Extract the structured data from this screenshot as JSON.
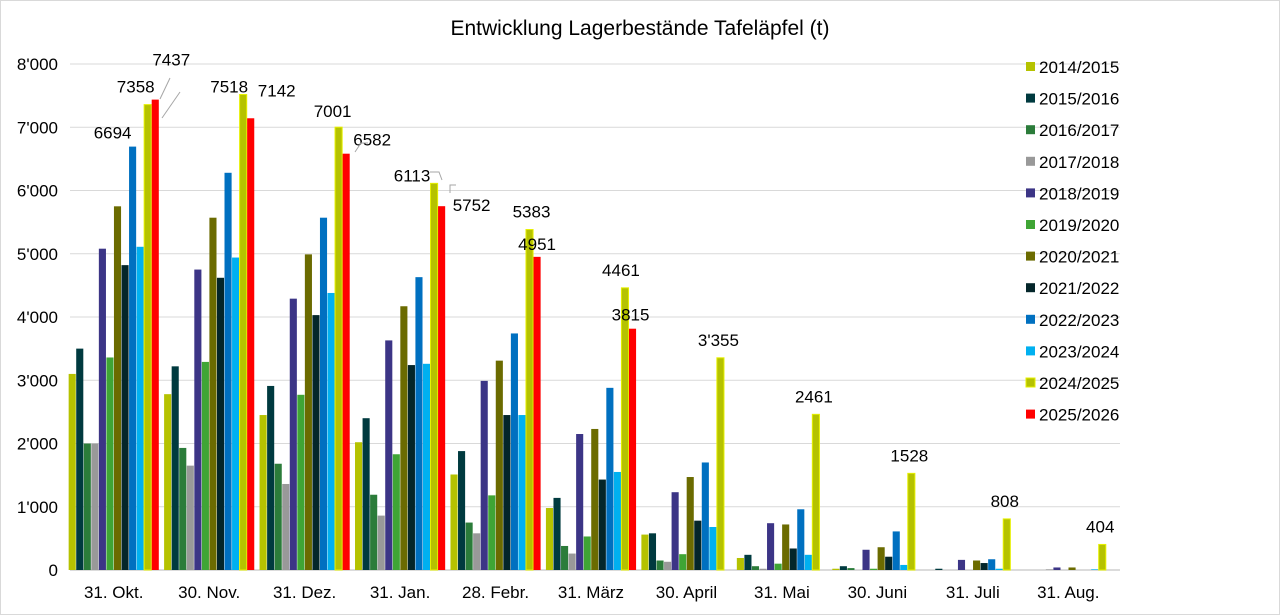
{
  "chart_data": {
    "type": "bar",
    "title": "Entwicklung Lagerbestände Tafeläpfel (t)",
    "xlabel": "",
    "ylabel": "",
    "ylim": [
      0,
      8000
    ],
    "yticks": [
      "0",
      "1'000",
      "2'000",
      "3'000",
      "4'000",
      "5'000",
      "6'000",
      "7'000",
      "8'000"
    ],
    "grid": true,
    "legend_position": "right",
    "categories": [
      "31. Okt.",
      "30. Nov.",
      "31. Dez.",
      "31. Jan.",
      "28. Febr.",
      "31. März",
      "30. April",
      "31. Mai",
      "30. Juni",
      "31. Juli",
      "31. Aug."
    ],
    "series": [
      {
        "name": "2014/2015",
        "color": "#b5c200",
        "values": [
          3100,
          2780,
          2450,
          2020,
          1510,
          980,
          560,
          190,
          20,
          0,
          0
        ]
      },
      {
        "name": "2015/2016",
        "color": "#003a3f",
        "values": [
          3500,
          3220,
          2910,
          2400,
          1880,
          1140,
          580,
          240,
          60,
          20,
          0
        ]
      },
      {
        "name": "2016/2017",
        "color": "#2b7c3a",
        "values": [
          2000,
          1930,
          1680,
          1190,
          750,
          380,
          150,
          60,
          30,
          0,
          0
        ]
      },
      {
        "name": "2017/2018",
        "color": "#999999",
        "values": [
          2000,
          1650,
          1360,
          860,
          580,
          260,
          130,
          20,
          0,
          0,
          10
        ]
      },
      {
        "name": "2018/2019",
        "color": "#3c3586",
        "values": [
          5080,
          4750,
          4290,
          3630,
          2990,
          2150,
          1230,
          740,
          320,
          160,
          40
        ]
      },
      {
        "name": "2019/2020",
        "color": "#3fa535",
        "values": [
          3360,
          3290,
          2770,
          1830,
          1180,
          530,
          250,
          100,
          20,
          0,
          0
        ]
      },
      {
        "name": "2020/2021",
        "color": "#6b6b00",
        "values": [
          5750,
          5570,
          4990,
          4170,
          3310,
          2230,
          1470,
          720,
          360,
          150,
          40
        ]
      },
      {
        "name": "2021/2022",
        "color": "#04262a",
        "values": [
          4820,
          4620,
          4030,
          3240,
          2450,
          1430,
          780,
          340,
          210,
          110,
          0
        ]
      },
      {
        "name": "2022/2023",
        "color": "#0070c0",
        "values": [
          6694,
          6280,
          5570,
          4630,
          3740,
          2880,
          1700,
          960,
          610,
          170,
          0
        ]
      },
      {
        "name": "2023/2024",
        "color": "#00b0f0",
        "values": [
          5110,
          4940,
          4380,
          3260,
          2450,
          1550,
          680,
          240,
          80,
          20,
          10
        ]
      },
      {
        "name": "2024/2025",
        "color": "#b5c200",
        "border": "#e6f000",
        "values": [
          7358,
          7518,
          7001,
          6113,
          5383,
          4461,
          3355,
          2461,
          1528,
          808,
          404
        ]
      },
      {
        "name": "2025/2026",
        "color": "#ff0000",
        "values": [
          7437,
          7142,
          6582,
          5752,
          4951,
          3815,
          null,
          null,
          null,
          null,
          null
        ]
      }
    ],
    "data_labels": [
      {
        "series": 8,
        "category": 0,
        "text": "6694"
      },
      {
        "series": 10,
        "category": 0,
        "text": "7358"
      },
      {
        "series": 11,
        "category": 0,
        "text": "7437"
      },
      {
        "series": 10,
        "category": 1,
        "text": "7518"
      },
      {
        "series": 11,
        "category": 1,
        "text": "7142"
      },
      {
        "series": 10,
        "category": 2,
        "text": "7001"
      },
      {
        "series": 11,
        "category": 2,
        "text": "6582"
      },
      {
        "series": 10,
        "category": 3,
        "text": "6113"
      },
      {
        "series": 11,
        "category": 3,
        "text": "5752"
      },
      {
        "series": 10,
        "category": 4,
        "text": "5383"
      },
      {
        "series": 11,
        "category": 4,
        "text": "4951"
      },
      {
        "series": 10,
        "category": 5,
        "text": "4461"
      },
      {
        "series": 11,
        "category": 5,
        "text": "3815"
      },
      {
        "series": 10,
        "category": 6,
        "text": "3'355"
      },
      {
        "series": 10,
        "category": 7,
        "text": "2461"
      },
      {
        "series": 10,
        "category": 8,
        "text": "1528"
      },
      {
        "series": 10,
        "category": 9,
        "text": "808"
      },
      {
        "series": 10,
        "category": 10,
        "text": "404"
      }
    ]
  }
}
